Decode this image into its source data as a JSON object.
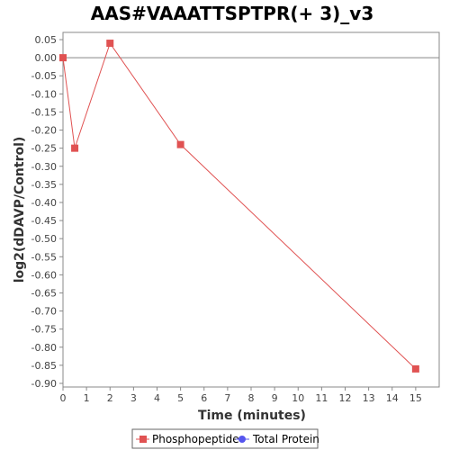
{
  "chart_data": {
    "type": "line",
    "title": "AAS#VAAATTSPTPR(+ 3)_v3",
    "xlabel": "Time (minutes)",
    "ylabel": "log2(dDAVP/Control)",
    "xlim": [
      0,
      16
    ],
    "ylim": [
      -0.91,
      0.07
    ],
    "x_ticks": [
      "0",
      "1",
      "2",
      "3",
      "4",
      "5",
      "6",
      "7",
      "8",
      "9",
      "10",
      "11",
      "12",
      "13",
      "14",
      "15"
    ],
    "y_ticks": [
      "0.05",
      "0.00",
      "-0.05",
      "-0.10",
      "-0.15",
      "-0.20",
      "-0.25",
      "-0.30",
      "-0.35",
      "-0.40",
      "-0.45",
      "-0.50",
      "-0.55",
      "-0.60",
      "-0.65",
      "-0.70",
      "-0.75",
      "-0.80",
      "-0.85",
      "-0.90"
    ],
    "reference_line_y": 0,
    "grid": false,
    "legend_position": "bottom",
    "series": [
      {
        "name": "Phosphopeptide",
        "color": "#e05252",
        "marker": "square",
        "x": [
          0,
          0.5,
          2,
          5,
          15
        ],
        "y": [
          0.0,
          -0.25,
          0.04,
          -0.24,
          -0.86
        ]
      },
      {
        "name": "Total Protein",
        "color": "#5555ee",
        "marker": "circle",
        "x": [],
        "y": []
      }
    ]
  }
}
